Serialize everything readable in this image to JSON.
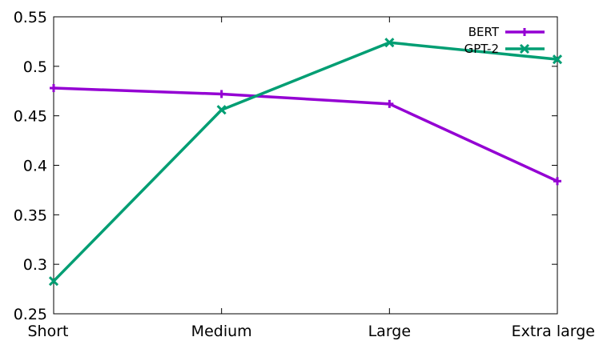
{
  "chart_data": {
    "type": "line",
    "categories": [
      "Short",
      "Medium",
      "Large",
      "Extra large"
    ],
    "series": [
      {
        "name": "BERT",
        "values": [
          0.478,
          0.472,
          0.462,
          0.384
        ],
        "color": "#9400d3",
        "marker": "plus"
      },
      {
        "name": "GPT-2",
        "values": [
          0.283,
          0.456,
          0.524,
          0.507
        ],
        "color": "#009e73",
        "marker": "cross"
      }
    ],
    "ylim": [
      0.25,
      0.55
    ],
    "yticks": [
      0.25,
      0.3,
      0.35,
      0.4,
      0.45,
      0.5,
      0.55
    ],
    "ytick_labels": [
      "0.25",
      "0.3",
      "0.35",
      "0.4",
      "0.45",
      "0.5",
      "0.55"
    ],
    "title": "",
    "xlabel": "",
    "ylabel": "",
    "grid": false,
    "legend_position": "top-right"
  }
}
